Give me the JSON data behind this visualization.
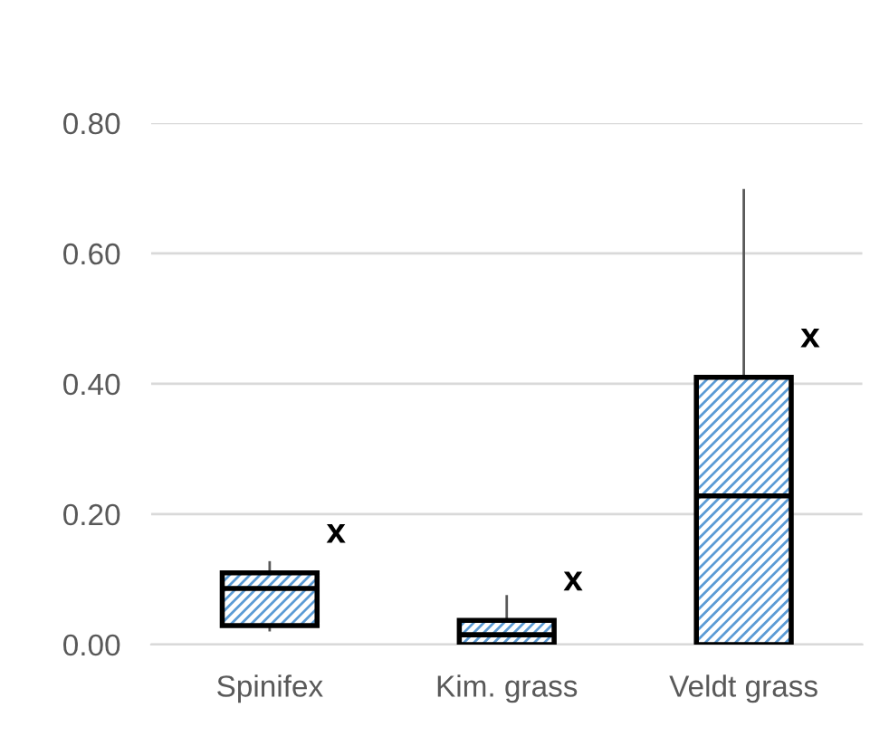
{
  "chart_data": {
    "type": "box",
    "categories": [
      "Spinifex",
      "Kim. grass",
      "Veldt grass"
    ],
    "boxes": [
      {
        "low": 0.022,
        "q1": 0.029,
        "median": 0.086,
        "q3": 0.11,
        "high": 0.126
      },
      {
        "low": 0.0,
        "q1": 0.0,
        "median": 0.015,
        "q3": 0.037,
        "high": 0.074
      },
      {
        "low": 0.0,
        "q1": 0.0,
        "median": 0.228,
        "q3": 0.41,
        "high": 0.697
      }
    ],
    "color": "#5b9bd5",
    "annotations": [
      "x",
      "x",
      "x"
    ],
    "ylim": [
      0,
      0.8
    ],
    "yticks": [
      {
        "value": 0,
        "label": "0.00"
      },
      {
        "value": 0.2,
        "label": "0.20"
      },
      {
        "value": 0.4,
        "label": "0.40"
      },
      {
        "value": 0.6,
        "label": "0.60"
      },
      {
        "value": 0.8,
        "label": "0.80"
      }
    ],
    "grid": "y"
  }
}
